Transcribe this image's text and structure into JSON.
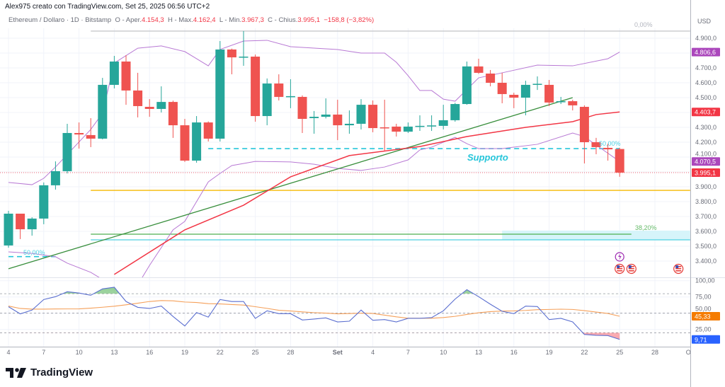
{
  "header": {
    "title": "Alex975 creato con TradingView.com, Set 25, 2025 06:56 UTC+2"
  },
  "legend": {
    "symbol": "Ethereum / Dollaro · 1D · Bitstamp",
    "open_label": "O - Aper.",
    "open": "4.154,3",
    "high_label": "H - Max.",
    "high": "4.162,4",
    "low_label": "L - Min.",
    "low": "3.967,3",
    "close_label": "C - Chius.",
    "close": "3.995,1",
    "change": "−158,8 (−3,82%)"
  },
  "colors": {
    "up": "#26a69a",
    "down": "#ef5350",
    "band": "#b879d4",
    "ema": "#f23645",
    "trend": "#388e3c",
    "support": "#26c6da",
    "level": "#f5b800",
    "rsi": "#5b6fd0",
    "rsi_ma": "#f5a05a"
  },
  "price_axis": {
    "unit": "USD",
    "ticks": [
      "4.900,0",
      "4.700,0",
      "4.600,0",
      "4.500,0",
      "4.300,0",
      "4.200,0",
      "4.100,0",
      "3.900,0",
      "3.800,0",
      "3.700,0",
      "3.600,0",
      "3.500,0",
      "3.400,0"
    ],
    "tick_values": [
      4900,
      4700,
      4600,
      4500,
      4300,
      4200,
      4100,
      3900,
      3800,
      3700,
      3600,
      3500,
      3400
    ]
  },
  "badges": [
    {
      "text": "4.806,6",
      "value": 4806.6,
      "color": "#ab47bc"
    },
    {
      "text": "4.403,7",
      "value": 4403.7,
      "color": "#f23645"
    },
    {
      "text": "4.070,5",
      "value": 4070.5,
      "color": "#ab47bc"
    },
    {
      "text": "3.995,1",
      "value": 3995.1,
      "color": "#f23645"
    }
  ],
  "indicator_axis": {
    "ticks": [
      "100,00",
      "75,00",
      "50,00",
      "25,00"
    ],
    "tick_values": [
      100,
      75,
      50,
      25
    ],
    "levels": [
      80,
      50,
      20
    ],
    "badges": [
      {
        "text": "45,33",
        "value": 45.33,
        "color": "#f57c00"
      },
      {
        "text": "9,71",
        "value": 9.71,
        "color": "#2962ff"
      }
    ]
  },
  "time_axis": {
    "ticks": [
      {
        "d": "2025-08-04",
        "t": "4"
      },
      {
        "d": "2025-08-07",
        "t": "7"
      },
      {
        "d": "2025-08-10",
        "t": "10"
      },
      {
        "d": "2025-08-13",
        "t": "13"
      },
      {
        "d": "2025-08-16",
        "t": "16"
      },
      {
        "d": "2025-08-19",
        "t": "19"
      },
      {
        "d": "2025-08-22",
        "t": "22"
      },
      {
        "d": "2025-08-25",
        "t": "25"
      },
      {
        "d": "2025-08-28",
        "t": "28"
      },
      {
        "d": "2025-09-01",
        "t": "Set"
      },
      {
        "d": "2025-09-04",
        "t": "4"
      },
      {
        "d": "2025-09-07",
        "t": "7"
      },
      {
        "d": "2025-09-10",
        "t": "10"
      },
      {
        "d": "2025-09-13",
        "t": "13"
      },
      {
        "d": "2025-09-16",
        "t": "16"
      },
      {
        "d": "2025-09-19",
        "t": "19"
      },
      {
        "d": "2025-09-22",
        "t": "22"
      },
      {
        "d": "2025-09-25",
        "t": "25"
      },
      {
        "d": "2025-09-28",
        "t": "28"
      },
      {
        "d": "2025-10-01",
        "t": "Ott"
      }
    ]
  },
  "chart_data": {
    "type": "candlestick",
    "candles_columns": [
      "date",
      "open",
      "high",
      "low",
      "close"
    ],
    "candles": [
      [
        "2025-08-04",
        3505,
        3738,
        3490,
        3719
      ],
      [
        "2025-08-05",
        3719,
        3719,
        3548,
        3614
      ],
      [
        "2025-08-06",
        3614,
        3695,
        3571,
        3686
      ],
      [
        "2025-08-07",
        3686,
        3929,
        3648,
        3910
      ],
      [
        "2025-08-08",
        3910,
        4071,
        3881,
        4005
      ],
      [
        "2025-08-09",
        4005,
        4324,
        3990,
        4262
      ],
      [
        "2025-08-10",
        4262,
        4333,
        4157,
        4252
      ],
      [
        "2025-08-11",
        4248,
        4362,
        4167,
        4224
      ],
      [
        "2025-08-12",
        4224,
        4633,
        4219,
        4586
      ],
      [
        "2025-08-13",
        4586,
        4781,
        4562,
        4743
      ],
      [
        "2025-08-14",
        4743,
        4786,
        4452,
        4548
      ],
      [
        "2025-08-15",
        4548,
        4667,
        4367,
        4443
      ],
      [
        "2025-08-16",
        4438,
        4490,
        4371,
        4424
      ],
      [
        "2025-08-17",
        4424,
        4576,
        4400,
        4471
      ],
      [
        "2025-08-18",
        4471,
        4480,
        4229,
        4314
      ],
      [
        "2025-08-19",
        4314,
        4357,
        4067,
        4076
      ],
      [
        "2025-08-20",
        4076,
        4376,
        4062,
        4333
      ],
      [
        "2025-08-21",
        4333,
        4340,
        4205,
        4224
      ],
      [
        "2025-08-22",
        4224,
        4881,
        4205,
        4824
      ],
      [
        "2025-08-23",
        4824,
        4830,
        4657,
        4771
      ],
      [
        "2025-08-24",
        4771,
        4948,
        4714,
        4776
      ],
      [
        "2025-08-25",
        4776,
        4790,
        4338,
        4376
      ],
      [
        "2025-08-26",
        4376,
        4629,
        4314,
        4595
      ],
      [
        "2025-08-27",
        4595,
        4657,
        4481,
        4505
      ],
      [
        "2025-08-28",
        4505,
        4624,
        4429,
        4510
      ],
      [
        "2025-08-29",
        4505,
        4515,
        4262,
        4357
      ],
      [
        "2025-08-30",
        4362,
        4410,
        4257,
        4371
      ],
      [
        "2025-08-31",
        4371,
        4495,
        4360,
        4386
      ],
      [
        "2025-09-01",
        4386,
        4486,
        4214,
        4314
      ],
      [
        "2025-09-02",
        4314,
        4414,
        4257,
        4324
      ],
      [
        "2025-09-03",
        4324,
        4490,
        4286,
        4452
      ],
      [
        "2025-09-04",
        4452,
        4481,
        4267,
        4295
      ],
      [
        "2025-09-05",
        4300,
        4486,
        4143,
        4295
      ],
      [
        "2025-09-06",
        4305,
        4324,
        4238,
        4271
      ],
      [
        "2025-09-07",
        4271,
        4333,
        4262,
        4305
      ],
      [
        "2025-09-08",
        4307,
        4381,
        4276,
        4310
      ],
      [
        "2025-09-09",
        4310,
        4381,
        4276,
        4313
      ],
      [
        "2025-09-10",
        4310,
        4452,
        4286,
        4348
      ],
      [
        "2025-09-11",
        4348,
        4465,
        4338,
        4457
      ],
      [
        "2025-09-12",
        4457,
        4743,
        4452,
        4710
      ],
      [
        "2025-09-13",
        4710,
        4762,
        4660,
        4667
      ],
      [
        "2025-09-14",
        4662,
        4686,
        4576,
        4600
      ],
      [
        "2025-09-15",
        4600,
        4667,
        4462,
        4524
      ],
      [
        "2025-09-16",
        4519,
        4533,
        4429,
        4500
      ],
      [
        "2025-09-17",
        4500,
        4614,
        4381,
        4586
      ],
      [
        "2025-09-18",
        4590,
        4643,
        4552,
        4593
      ],
      [
        "2025-09-19",
        4586,
        4619,
        4443,
        4467
      ],
      [
        "2025-09-20",
        4471,
        4505,
        4457,
        4476
      ],
      [
        "2025-09-21",
        4476,
        4486,
        4414,
        4448
      ],
      [
        "2025-09-22",
        4438,
        4448,
        4057,
        4200
      ],
      [
        "2025-09-23",
        4200,
        4229,
        4119,
        4167
      ],
      [
        "2025-09-24",
        4162,
        4190,
        4076,
        4152
      ],
      [
        "2025-09-25",
        4154.3,
        4162.4,
        3967.3,
        3995.1
      ]
    ],
    "upper_band": [
      [
        "2025-08-04",
        3929
      ],
      [
        "2025-08-06",
        3914
      ],
      [
        "2025-08-07",
        3957
      ],
      [
        "2025-08-08",
        4033
      ],
      [
        "2025-08-11",
        4286
      ],
      [
        "2025-08-12",
        4395
      ],
      [
        "2025-08-13",
        4733
      ],
      [
        "2025-08-15",
        4833
      ],
      [
        "2025-08-17",
        4848
      ],
      [
        "2025-08-19",
        4810
      ],
      [
        "2025-08-20",
        4762
      ],
      [
        "2025-08-21",
        4714
      ],
      [
        "2025-08-22",
        4824
      ],
      [
        "2025-08-24",
        4881
      ],
      [
        "2025-08-26",
        4886
      ],
      [
        "2025-08-28",
        4843
      ],
      [
        "2025-09-01",
        4824
      ],
      [
        "2025-09-03",
        4800
      ],
      [
        "2025-09-05",
        4800
      ],
      [
        "2025-09-06",
        4738
      ],
      [
        "2025-09-07",
        4648
      ],
      [
        "2025-09-08",
        4548
      ],
      [
        "2025-09-09",
        4548
      ],
      [
        "2025-09-10",
        4490
      ],
      [
        "2025-09-11",
        4476
      ],
      [
        "2025-09-13",
        4633
      ],
      [
        "2025-09-15",
        4667
      ],
      [
        "2025-09-18",
        4719
      ],
      [
        "2025-09-21",
        4714
      ],
      [
        "2025-09-24",
        4762
      ],
      [
        "2025-09-25",
        4806.6
      ]
    ],
    "lower_band": [
      [
        "2025-08-04",
        3462
      ],
      [
        "2025-08-06",
        3452
      ],
      [
        "2025-08-08",
        3429
      ],
      [
        "2025-08-09",
        3386
      ],
      [
        "2025-08-11",
        3324
      ],
      [
        "2025-08-12",
        3276
      ],
      [
        "2025-08-15",
        3240
      ],
      [
        "2025-08-16",
        3371
      ],
      [
        "2025-08-18",
        3610
      ],
      [
        "2025-08-19",
        3667
      ],
      [
        "2025-08-21",
        3933
      ],
      [
        "2025-08-22",
        3990
      ],
      [
        "2025-08-23",
        4043
      ],
      [
        "2025-08-25",
        4071
      ],
      [
        "2025-08-28",
        4067
      ],
      [
        "2025-08-30",
        4052
      ],
      [
        "2025-09-01",
        4024
      ],
      [
        "2025-09-03",
        4010
      ],
      [
        "2025-09-05",
        4033
      ],
      [
        "2025-09-07",
        4081
      ],
      [
        "2025-09-08",
        4148
      ],
      [
        "2025-09-09",
        4167
      ],
      [
        "2025-09-11",
        4233
      ],
      [
        "2025-09-12",
        4190
      ],
      [
        "2025-09-13",
        4157
      ],
      [
        "2025-09-15",
        4157
      ],
      [
        "2025-09-18",
        4186
      ],
      [
        "2025-09-21",
        4262
      ],
      [
        "2025-09-22",
        4238
      ],
      [
        "2025-09-23",
        4181
      ],
      [
        "2025-09-25",
        4070.5
      ]
    ],
    "ema": [
      [
        "2025-08-13",
        3310
      ],
      [
        "2025-08-19",
        3610
      ],
      [
        "2025-08-24",
        3776
      ],
      [
        "2025-08-28",
        3967
      ],
      [
        "2025-09-02",
        4110
      ],
      [
        "2025-09-08",
        4171
      ],
      [
        "2025-09-12",
        4238
      ],
      [
        "2025-09-17",
        4300
      ],
      [
        "2025-09-21",
        4338
      ],
      [
        "2025-09-23",
        4386
      ],
      [
        "2025-09-25",
        4403.7
      ]
    ],
    "trendline": [
      [
        "2025-08-04",
        3348
      ],
      [
        "2025-09-21",
        4500
      ]
    ],
    "levels": [
      {
        "name": "fib-0",
        "price": 4948,
        "from": "2025-08-11",
        "to": "2025-10-01",
        "color": "#c8c9cc",
        "label": "0,00%",
        "label_color": "#b2b5be",
        "style": "solid"
      },
      {
        "name": "support",
        "price": 4157,
        "from": "2025-08-21",
        "to": "2025-09-25",
        "color": "#26c6da",
        "label": "50,00%",
        "label_color": "#4dd0e1",
        "style": "dashed"
      },
      {
        "name": "fib-50-left",
        "price": 3430,
        "from": "2025-08-04",
        "to": "2025-08-08",
        "color": "#26c6da",
        "label": "50,00%",
        "label_color": "#4dd0e1",
        "style": "dashed"
      },
      {
        "name": "level-orange",
        "price": 3876,
        "from": "2025-08-11",
        "to": "2025-10-01",
        "color": "#f5b800",
        "label": "",
        "label_color": "",
        "style": "solid"
      },
      {
        "name": "fib-38",
        "price": 3581,
        "from": "2025-08-11",
        "to": "2025-09-26",
        "color": "#4caf50",
        "label": "38,20%",
        "label_color": "#66bb6a",
        "style": "solid"
      },
      {
        "name": "level-cyan",
        "price": 3543,
        "from": "2025-08-11",
        "to": "2025-10-01",
        "color": "#4dd0e1",
        "label": "",
        "label_color": "",
        "style": "solid"
      }
    ],
    "zone": {
      "from": "2025-09-15",
      "to": "2025-10-01",
      "top": 3605,
      "bottom": 3543,
      "color": "#d6f4fa"
    },
    "support_label": "Supporto",
    "indicator": {
      "line": [
        60,
        49,
        54.8,
        71,
        75.4,
        83,
        81,
        77.6,
        87.4,
        89.9,
        68,
        59,
        57.3,
        61,
        45,
        30.4,
        51,
        44,
        71,
        68,
        68,
        42,
        53.7,
        49.3,
        49.3,
        39.6,
        41,
        42.8,
        36.6,
        37.7,
        54.8,
        39.1,
        40.2,
        36.6,
        42.1,
        42.1,
        43.2,
        53.7,
        71.7,
        86.2,
        75.4,
        63.8,
        52.9,
        49.3,
        60.9,
        60.2,
        40.2,
        42.1,
        36.6,
        17.4,
        16,
        15.6,
        9.71
      ],
      "signal": [
        61,
        57.3,
        56.3,
        56.3,
        56.5,
        56.6,
        56.7,
        57.8,
        59.2,
        60.7,
        62.9,
        65.4,
        68,
        69.4,
        69,
        67.2,
        66.5,
        64.7,
        64.3,
        63.3,
        62.5,
        60,
        57.4,
        54.5,
        53.4,
        52,
        50.9,
        50.2,
        49.1,
        49.5,
        50,
        49.6,
        47,
        44.4,
        42.3,
        42.3,
        42.3,
        43.4,
        45.2,
        48.1,
        50.7,
        52.5,
        53.3,
        53.6,
        54.3,
        55.4,
        55.8,
        56.2,
        55.8,
        54,
        51.8,
        49.6,
        45.33
      ],
      "range": [
        0,
        100
      ]
    },
    "events": [
      {
        "date": "2025-09-25",
        "icon": "lightning-icon"
      },
      {
        "date": "2025-09-25",
        "icon": "us-flag-icon"
      },
      {
        "date": "2025-09-26",
        "icon": "us-flag-icon"
      },
      {
        "date": "2025-09-30",
        "icon": "us-flag-icon"
      }
    ]
  },
  "brand": {
    "name": "TradingView"
  }
}
